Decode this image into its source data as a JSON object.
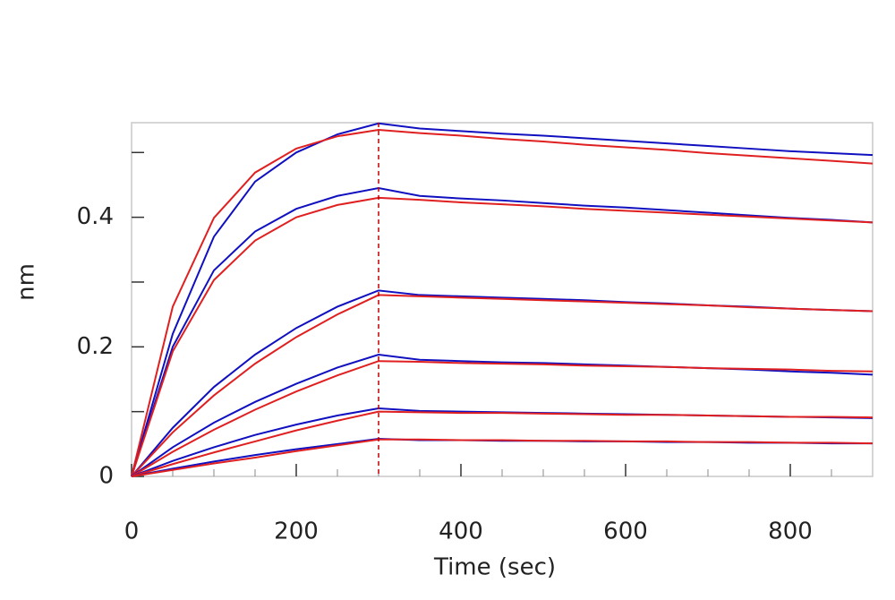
{
  "chart_data": {
    "type": "line",
    "xlabel": "Time (sec)",
    "ylabel": "nm",
    "x": [
      0,
      50,
      100,
      150,
      200,
      250,
      300,
      350,
      400,
      450,
      500,
      550,
      600,
      650,
      700,
      750,
      800,
      850,
      900
    ],
    "series": [
      {
        "color": "#1010c0",
        "values": [
          0,
          0.22,
          0.37,
          0.455,
          0.5,
          0.528,
          0.545,
          0.537,
          0.533,
          0.529,
          0.526,
          0.522,
          0.518,
          0.514,
          0.51,
          0.506,
          0.502,
          0.499,
          0.496
        ]
      },
      {
        "color": "#e02020",
        "values": [
          0,
          0.262,
          0.399,
          0.469,
          0.506,
          0.525,
          0.535,
          0.53,
          0.526,
          0.521,
          0.517,
          0.512,
          0.508,
          0.504,
          0.499,
          0.495,
          0.491,
          0.487,
          0.483
        ]
      },
      {
        "color": "#1010c0",
        "values": [
          0,
          0.2,
          0.318,
          0.378,
          0.413,
          0.433,
          0.445,
          0.433,
          0.429,
          0.426,
          0.422,
          0.418,
          0.415,
          0.411,
          0.407,
          0.403,
          0.399,
          0.396,
          0.392
        ]
      },
      {
        "color": "#e02020",
        "values": [
          0,
          0.193,
          0.303,
          0.364,
          0.4,
          0.419,
          0.43,
          0.427,
          0.423,
          0.42,
          0.417,
          0.413,
          0.41,
          0.407,
          0.404,
          0.401,
          0.398,
          0.395,
          0.392
        ]
      },
      {
        "color": "#1010c0",
        "values": [
          0,
          0.075,
          0.138,
          0.188,
          0.229,
          0.262,
          0.287,
          0.28,
          0.278,
          0.276,
          0.274,
          0.272,
          0.269,
          0.267,
          0.264,
          0.262,
          0.259,
          0.257,
          0.255
        ]
      },
      {
        "color": "#e02020",
        "values": [
          0,
          0.068,
          0.125,
          0.174,
          0.215,
          0.25,
          0.28,
          0.278,
          0.276,
          0.274,
          0.272,
          0.27,
          0.268,
          0.266,
          0.264,
          0.261,
          0.259,
          0.257,
          0.255
        ]
      },
      {
        "color": "#1010c0",
        "values": [
          0,
          0.045,
          0.083,
          0.115,
          0.143,
          0.168,
          0.188,
          0.18,
          0.178,
          0.176,
          0.175,
          0.173,
          0.171,
          0.169,
          0.167,
          0.165,
          0.162,
          0.16,
          0.157
        ]
      },
      {
        "color": "#e02020",
        "values": [
          0,
          0.038,
          0.072,
          0.103,
          0.131,
          0.156,
          0.178,
          0.177,
          0.175,
          0.174,
          0.173,
          0.171,
          0.17,
          0.169,
          0.167,
          0.166,
          0.165,
          0.163,
          0.162
        ]
      },
      {
        "color": "#1010c0",
        "values": [
          0,
          0.024,
          0.045,
          0.064,
          0.08,
          0.094,
          0.105,
          0.101,
          0.1,
          0.099,
          0.098,
          0.097,
          0.096,
          0.095,
          0.094,
          0.093,
          0.092,
          0.091,
          0.09
        ]
      },
      {
        "color": "#e02020",
        "values": [
          0,
          0.019,
          0.037,
          0.054,
          0.071,
          0.086,
          0.1,
          0.099,
          0.098,
          0.098,
          0.097,
          0.096,
          0.095,
          0.095,
          0.094,
          0.093,
          0.092,
          0.092,
          0.091
        ]
      },
      {
        "color": "#1010c0",
        "values": [
          0,
          0.012,
          0.023,
          0.033,
          0.042,
          0.05,
          0.058,
          0.056,
          0.056,
          0.055,
          0.055,
          0.054,
          0.054,
          0.053,
          0.053,
          0.052,
          0.052,
          0.051,
          0.051
        ]
      },
      {
        "color": "#e02020",
        "values": [
          0,
          0.01,
          0.02,
          0.029,
          0.039,
          0.048,
          0.057,
          0.057,
          0.056,
          0.056,
          0.055,
          0.055,
          0.054,
          0.054,
          0.053,
          0.053,
          0.052,
          0.052,
          0.051
        ]
      }
    ],
    "xlim": [
      0,
      900
    ],
    "xticks": [
      0,
      200,
      400,
      600,
      800
    ],
    "xminorticks": [
      50,
      100,
      150,
      250,
      300,
      350,
      450,
      500,
      550,
      650,
      700,
      750,
      850
    ],
    "ylim": [
      0,
      0.546
    ],
    "yticks": [
      0,
      0.2,
      0.4
    ],
    "yminorticks": [
      0.1,
      0.3,
      0.5
    ],
    "vline": {
      "x": 300,
      "color": "#c00000"
    }
  }
}
